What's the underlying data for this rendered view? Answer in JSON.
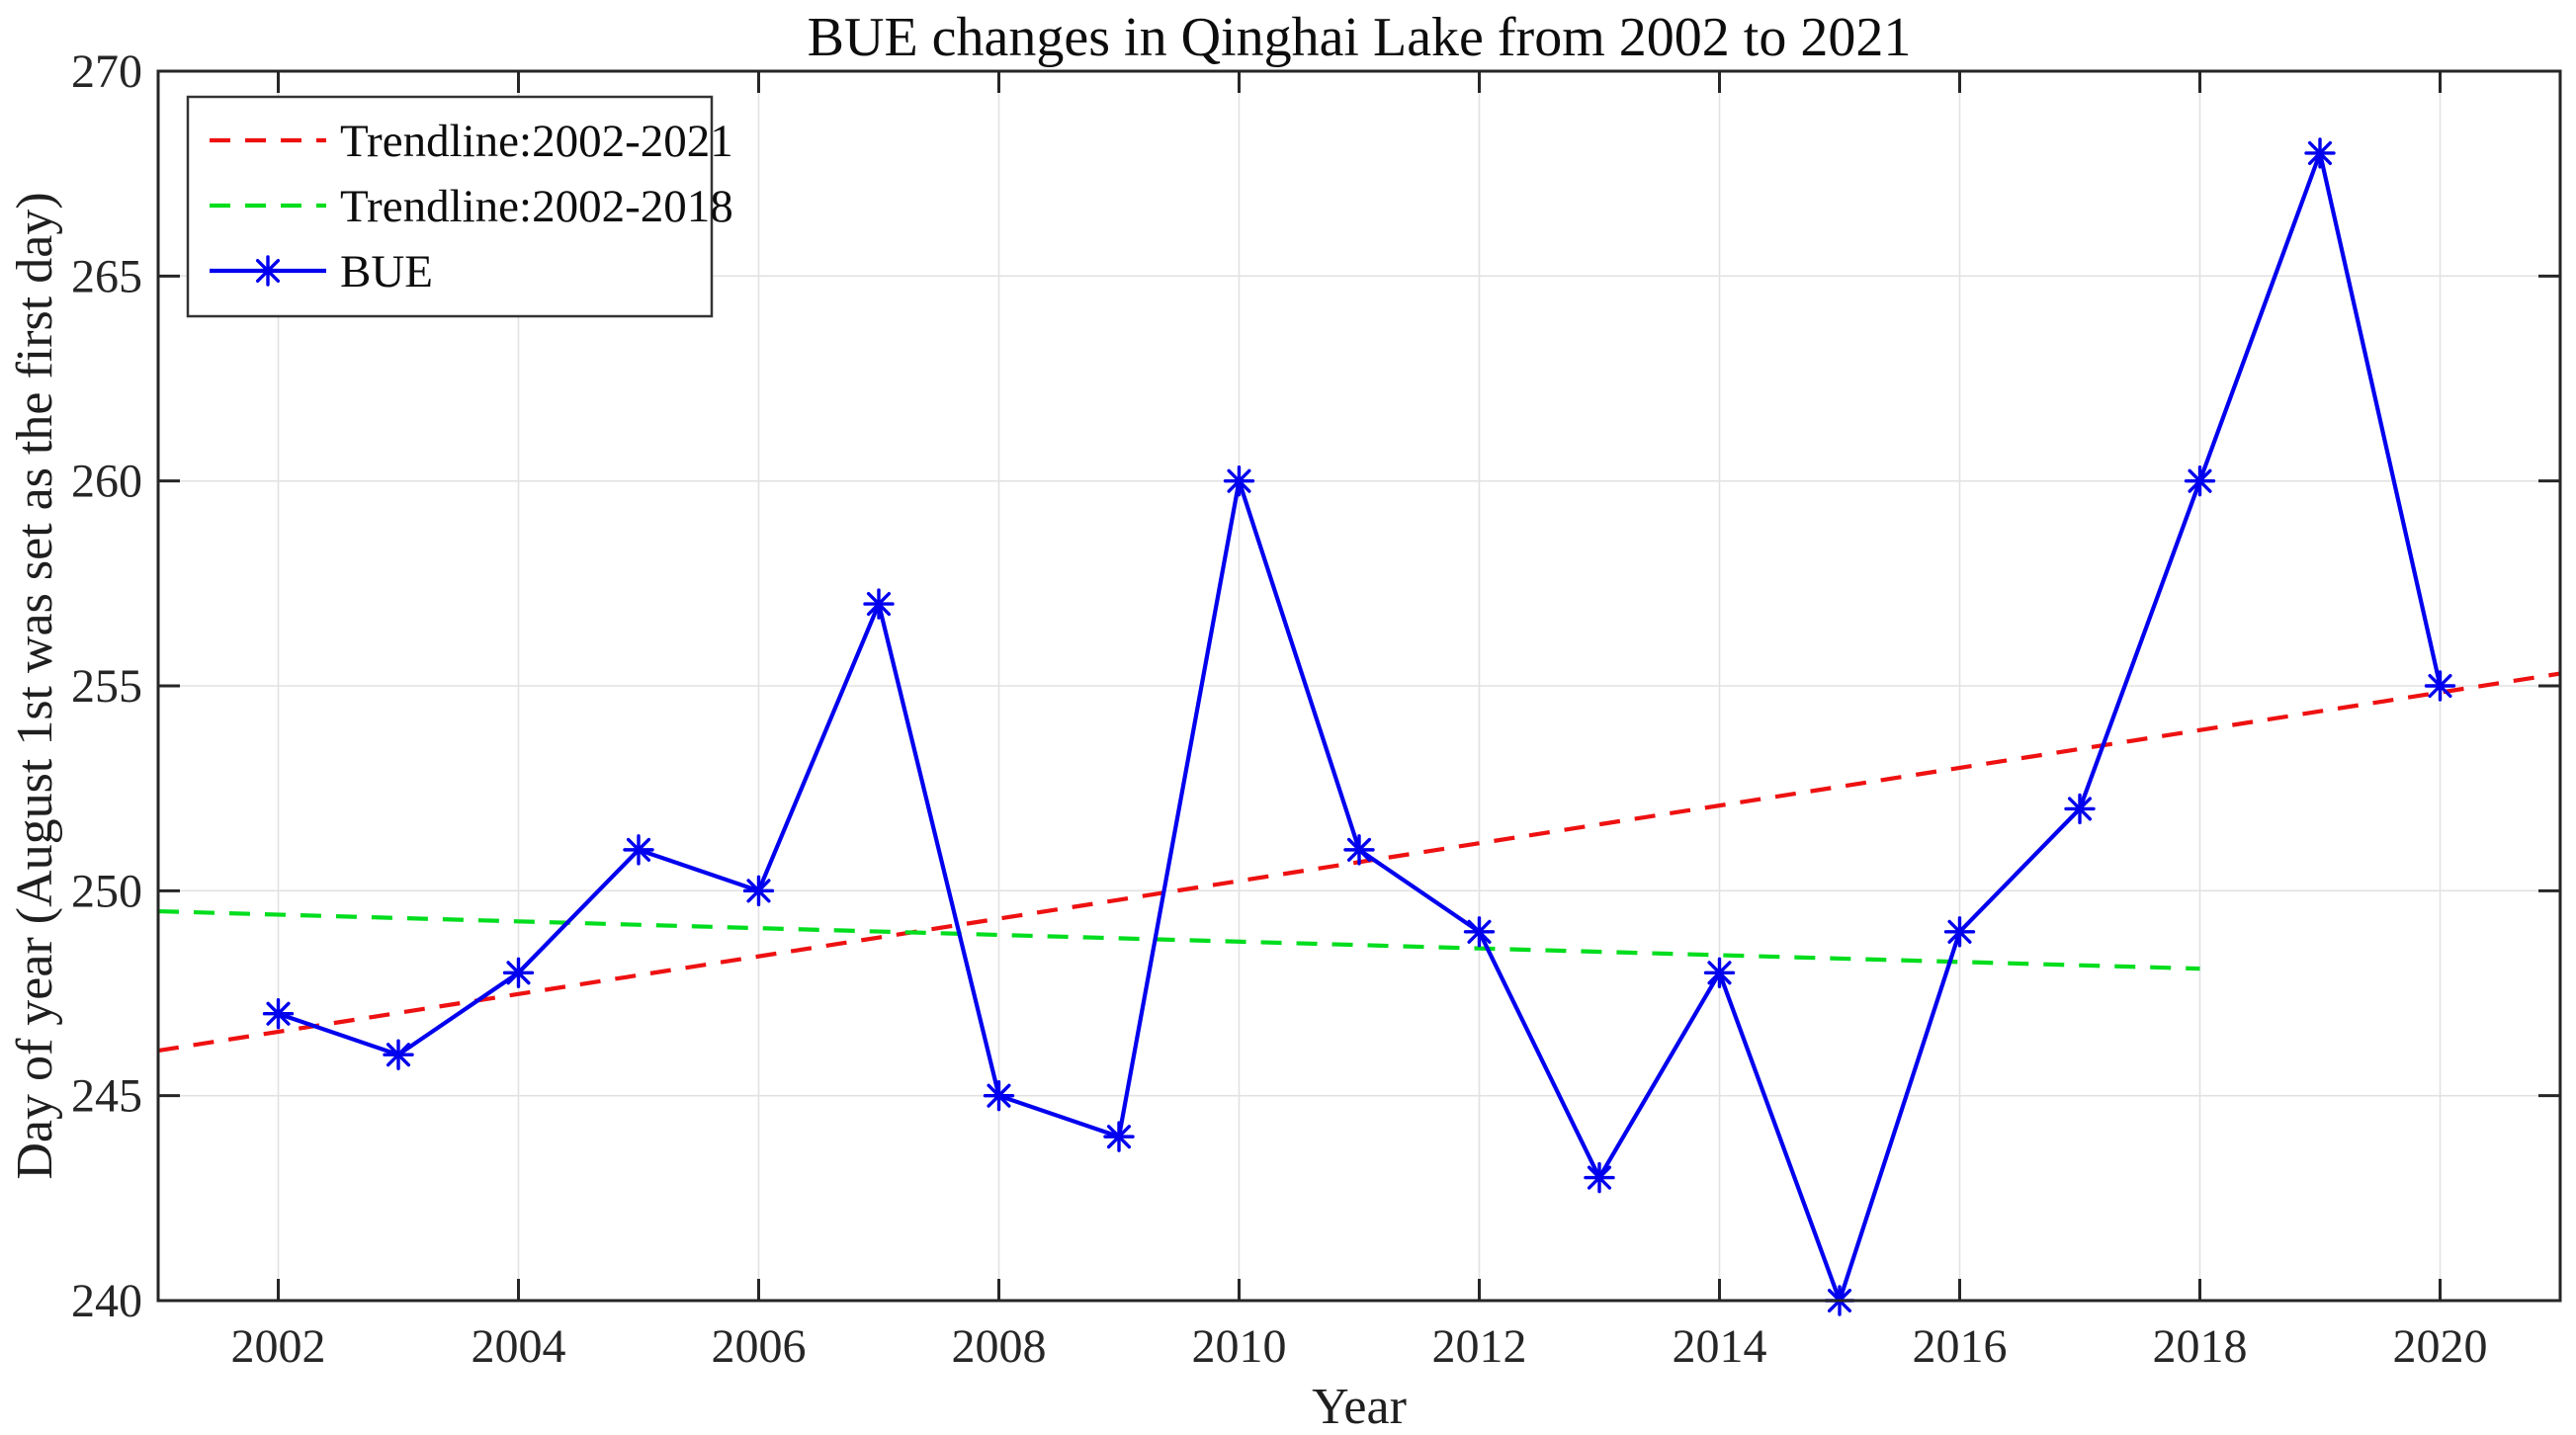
{
  "chart_data": {
    "type": "line",
    "title": "BUE changes in Qinghai Lake from 2002 to 2021",
    "xlabel": "Year",
    "ylabel": "Day of year (August 1st was set as the first day)",
    "xlim": [
      2001,
      2021
    ],
    "ylim": [
      240,
      270
    ],
    "xticks": [
      2002,
      2004,
      2006,
      2008,
      2010,
      2012,
      2014,
      2016,
      2018,
      2020
    ],
    "yticks": [
      240,
      245,
      250,
      255,
      260,
      265,
      270
    ],
    "grid": true,
    "legend_position": "top-left",
    "series": [
      {
        "name": "Trendline:2002-2021",
        "kind": "trendline",
        "style": "dashed",
        "color": "#ee1111",
        "x": [
          2001,
          2021
        ],
        "values": [
          246.1,
          255.3
        ]
      },
      {
        "name": "Trendline:2002-2018",
        "kind": "trendline",
        "style": "dashed",
        "color": "#00dd1e",
        "x": [
          2001,
          2018
        ],
        "values": [
          249.5,
          248.1
        ]
      },
      {
        "name": "BUE",
        "kind": "line-markers",
        "style": "solid",
        "marker": "asterisk",
        "color": "#0000ee",
        "x": [
          2002,
          2003,
          2004,
          2005,
          2006,
          2007,
          2008,
          2009,
          2010,
          2011,
          2012,
          2013,
          2014,
          2015,
          2016,
          2017,
          2018,
          2019,
          2020
        ],
        "values": [
          247,
          246,
          248,
          251,
          250,
          257,
          245,
          244,
          260,
          251,
          249,
          243,
          248,
          240,
          249,
          252,
          260,
          268,
          255
        ]
      }
    ],
    "colors": {
      "background": "#ffffff",
      "grid": "#e2e2e2",
      "axis": "#262626",
      "tick_text": "#262626"
    }
  }
}
